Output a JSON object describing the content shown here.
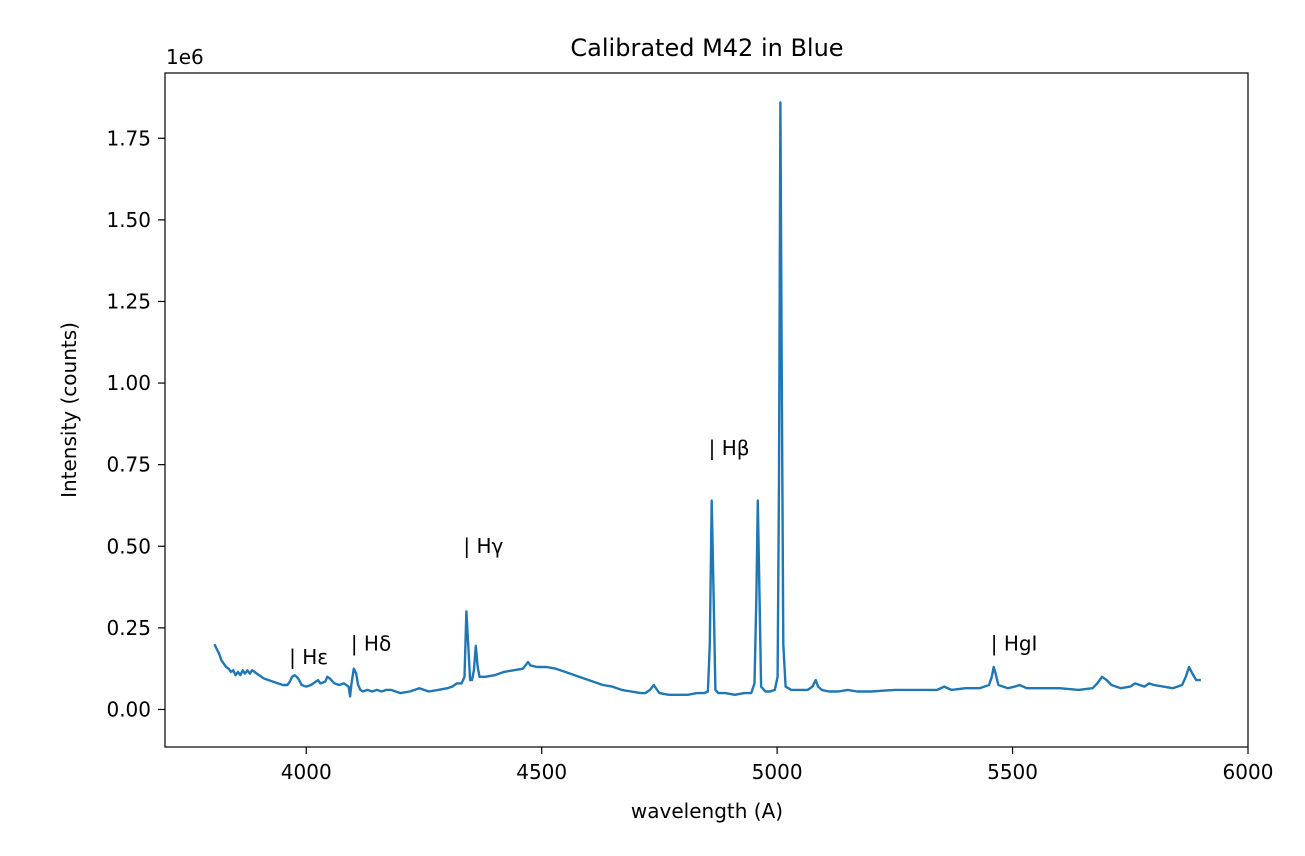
{
  "chart_data": {
    "type": "line",
    "title": "Calibrated M42 in Blue",
    "xlabel": "wavelength (A)",
    "ylabel": "Intensity (counts)",
    "offset_text": "1e6",
    "xlim": [
      3700,
      6000
    ],
    "ylim": [
      -0.115,
      1.95
    ],
    "x_ticks": [
      4000,
      4500,
      5000,
      5500,
      6000
    ],
    "y_ticks": [
      0.0,
      0.25,
      0.5,
      0.75,
      1.0,
      1.25,
      1.5,
      1.75
    ],
    "x_tick_labels": [
      "4000",
      "4500",
      "5000",
      "5500",
      "6000"
    ],
    "y_tick_labels": [
      "0.00",
      "0.25",
      "0.50",
      "0.75",
      "1.00",
      "1.25",
      "1.50",
      "1.75"
    ],
    "grid": false,
    "line_color": "#1f77b4",
    "annotations": [
      {
        "text": "| Hε",
        "x": 3970,
        "y": 0.14
      },
      {
        "text": "| Hδ",
        "x": 4101,
        "y": 0.18
      },
      {
        "text": "| Hγ",
        "x": 4340,
        "y": 0.48
      },
      {
        "text": "| Hβ",
        "x": 4861,
        "y": 0.78
      },
      {
        "text": "| HgI",
        "x": 5460,
        "y": 0.18
      }
    ],
    "series": [
      {
        "values": [
          [
            3805,
            0.2
          ],
          [
            3810,
            0.185
          ],
          [
            3815,
            0.17
          ],
          [
            3820,
            0.15
          ],
          [
            3825,
            0.14
          ],
          [
            3830,
            0.13
          ],
          [
            3835,
            0.125
          ],
          [
            3840,
            0.115
          ],
          [
            3845,
            0.12
          ],
          [
            3850,
            0.105
          ],
          [
            3855,
            0.115
          ],
          [
            3860,
            0.105
          ],
          [
            3865,
            0.12
          ],
          [
            3870,
            0.11
          ],
          [
            3875,
            0.12
          ],
          [
            3880,
            0.11
          ],
          [
            3885,
            0.12
          ],
          [
            3890,
            0.115
          ],
          [
            3895,
            0.11
          ],
          [
            3900,
            0.105
          ],
          [
            3910,
            0.095
          ],
          [
            3920,
            0.09
          ],
          [
            3930,
            0.085
          ],
          [
            3940,
            0.08
          ],
          [
            3950,
            0.075
          ],
          [
            3960,
            0.075
          ],
          [
            3965,
            0.085
          ],
          [
            3970,
            0.1
          ],
          [
            3975,
            0.105
          ],
          [
            3980,
            0.1
          ],
          [
            3985,
            0.09
          ],
          [
            3990,
            0.075
          ],
          [
            4000,
            0.07
          ],
          [
            4010,
            0.075
          ],
          [
            4020,
            0.085
          ],
          [
            4025,
            0.09
          ],
          [
            4030,
            0.08
          ],
          [
            4040,
            0.085
          ],
          [
            4045,
            0.1
          ],
          [
            4050,
            0.095
          ],
          [
            4060,
            0.08
          ],
          [
            4070,
            0.075
          ],
          [
            4080,
            0.08
          ],
          [
            4090,
            0.07
          ],
          [
            4093,
            0.04
          ],
          [
            4096,
            0.08
          ],
          [
            4101,
            0.125
          ],
          [
            4106,
            0.11
          ],
          [
            4110,
            0.075
          ],
          [
            4115,
            0.06
          ],
          [
            4120,
            0.055
          ],
          [
            4130,
            0.06
          ],
          [
            4140,
            0.055
          ],
          [
            4150,
            0.06
          ],
          [
            4160,
            0.055
          ],
          [
            4170,
            0.06
          ],
          [
            4180,
            0.06
          ],
          [
            4190,
            0.055
          ],
          [
            4200,
            0.05
          ],
          [
            4220,
            0.055
          ],
          [
            4240,
            0.065
          ],
          [
            4250,
            0.06
          ],
          [
            4260,
            0.055
          ],
          [
            4280,
            0.06
          ],
          [
            4300,
            0.065
          ],
          [
            4310,
            0.07
          ],
          [
            4320,
            0.08
          ],
          [
            4330,
            0.08
          ],
          [
            4336,
            0.1
          ],
          [
            4340,
            0.3
          ],
          [
            4344,
            0.2
          ],
          [
            4348,
            0.09
          ],
          [
            4352,
            0.09
          ],
          [
            4356,
            0.12
          ],
          [
            4360,
            0.195
          ],
          [
            4364,
            0.13
          ],
          [
            4368,
            0.1
          ],
          [
            4380,
            0.1
          ],
          [
            4400,
            0.105
          ],
          [
            4420,
            0.115
          ],
          [
            4440,
            0.12
          ],
          [
            4460,
            0.125
          ],
          [
            4471,
            0.145
          ],
          [
            4476,
            0.135
          ],
          [
            4490,
            0.13
          ],
          [
            4510,
            0.13
          ],
          [
            4530,
            0.125
          ],
          [
            4550,
            0.115
          ],
          [
            4570,
            0.105
          ],
          [
            4590,
            0.095
          ],
          [
            4610,
            0.085
          ],
          [
            4630,
            0.075
          ],
          [
            4650,
            0.07
          ],
          [
            4670,
            0.06
          ],
          [
            4690,
            0.055
          ],
          [
            4710,
            0.05
          ],
          [
            4720,
            0.05
          ],
          [
            4730,
            0.06
          ],
          [
            4738,
            0.075
          ],
          [
            4745,
            0.06
          ],
          [
            4750,
            0.05
          ],
          [
            4770,
            0.045
          ],
          [
            4790,
            0.045
          ],
          [
            4810,
            0.045
          ],
          [
            4830,
            0.05
          ],
          [
            4845,
            0.05
          ],
          [
            4853,
            0.055
          ],
          [
            4857,
            0.2
          ],
          [
            4861,
            0.64
          ],
          [
            4865,
            0.35
          ],
          [
            4869,
            0.06
          ],
          [
            4875,
            0.05
          ],
          [
            4890,
            0.05
          ],
          [
            4910,
            0.045
          ],
          [
            4930,
            0.05
          ],
          [
            4945,
            0.05
          ],
          [
            4952,
            0.08
          ],
          [
            4956,
            0.35
          ],
          [
            4959,
            0.64
          ],
          [
            4962,
            0.4
          ],
          [
            4966,
            0.07
          ],
          [
            4975,
            0.055
          ],
          [
            4985,
            0.055
          ],
          [
            4995,
            0.06
          ],
          [
            5001,
            0.1
          ],
          [
            5004,
            0.7
          ],
          [
            5007,
            1.86
          ],
          [
            5010,
            1.0
          ],
          [
            5013,
            0.2
          ],
          [
            5018,
            0.07
          ],
          [
            5030,
            0.06
          ],
          [
            5050,
            0.06
          ],
          [
            5065,
            0.06
          ],
          [
            5075,
            0.07
          ],
          [
            5082,
            0.09
          ],
          [
            5087,
            0.07
          ],
          [
            5095,
            0.06
          ],
          [
            5110,
            0.055
          ],
          [
            5130,
            0.055
          ],
          [
            5150,
            0.06
          ],
          [
            5170,
            0.055
          ],
          [
            5200,
            0.055
          ],
          [
            5250,
            0.06
          ],
          [
            5300,
            0.06
          ],
          [
            5340,
            0.06
          ],
          [
            5355,
            0.07
          ],
          [
            5370,
            0.06
          ],
          [
            5400,
            0.065
          ],
          [
            5430,
            0.065
          ],
          [
            5450,
            0.075
          ],
          [
            5456,
            0.1
          ],
          [
            5460,
            0.13
          ],
          [
            5464,
            0.11
          ],
          [
            5470,
            0.075
          ],
          [
            5490,
            0.065
          ],
          [
            5505,
            0.07
          ],
          [
            5515,
            0.075
          ],
          [
            5530,
            0.065
          ],
          [
            5560,
            0.065
          ],
          [
            5600,
            0.065
          ],
          [
            5640,
            0.06
          ],
          [
            5670,
            0.065
          ],
          [
            5680,
            0.08
          ],
          [
            5690,
            0.1
          ],
          [
            5700,
            0.09
          ],
          [
            5710,
            0.075
          ],
          [
            5730,
            0.065
          ],
          [
            5750,
            0.07
          ],
          [
            5760,
            0.08
          ],
          [
            5770,
            0.075
          ],
          [
            5780,
            0.07
          ],
          [
            5790,
            0.08
          ],
          [
            5800,
            0.075
          ],
          [
            5820,
            0.07
          ],
          [
            5840,
            0.065
          ],
          [
            5860,
            0.075
          ],
          [
            5868,
            0.1
          ],
          [
            5875,
            0.13
          ],
          [
            5882,
            0.11
          ],
          [
            5890,
            0.09
          ],
          [
            5900,
            0.09
          ]
        ]
      }
    ]
  }
}
